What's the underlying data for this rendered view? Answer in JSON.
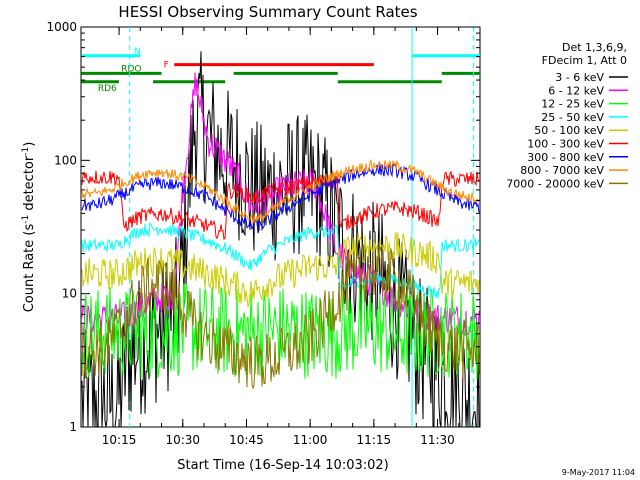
{
  "chart_data": {
    "type": "line",
    "title": "HESSI Observing Summary Count Rates",
    "xlabel": "Start Time (16-Sep-14 10:03:02)",
    "ylabel_main": "Count Rate (s",
    "ylabel_sup1": "-1",
    "ylabel_mid": " detector",
    "ylabel_sup2": "-1",
    "ylabel_end": ")",
    "xlim_min": [
      3.033,
      97.0
    ],
    "ylim": [
      1,
      1000
    ],
    "yscale": "log",
    "x_ticks": [
      {
        "min": 12,
        "label": "10:15"
      },
      {
        "min": 27,
        "label": "10:30"
      },
      {
        "min": 42,
        "label": "10:45"
      },
      {
        "min": 57,
        "label": "11:00"
      },
      {
        "min": 72,
        "label": "11:15"
      },
      {
        "min": 87,
        "label": "11:30"
      }
    ],
    "y_ticks": [
      {
        "v": 1,
        "label": "1"
      },
      {
        "v": 10,
        "label": "10"
      },
      {
        "v": 100,
        "label": "100"
      },
      {
        "v": 1000,
        "label": "1000"
      }
    ],
    "legend_header": [
      "Det 1,3,6,9,",
      "FDecim 1, Att 0"
    ],
    "series": [
      {
        "name": "3 - 6 keV",
        "color": "#000000",
        "x": [
          3.1,
          12,
          14,
          22,
          26,
          28.5,
          30,
          33,
          36,
          40,
          43,
          46,
          50,
          54,
          58,
          61,
          63,
          66,
          70,
          74,
          76,
          79,
          82,
          88,
          92,
          97
        ],
        "y": [
          1.5,
          1.6,
          3.5,
          5.5,
          8,
          60,
          220,
          150,
          110,
          90,
          60,
          55,
          60,
          65,
          62,
          45,
          30,
          22,
          16,
          12,
          9,
          7,
          4,
          2.5,
          1.8,
          1.5
        ]
      },
      {
        "name": "6 - 12 keV",
        "color": "#ff00ff",
        "x": [
          3.1,
          12,
          15,
          20,
          25,
          27,
          30,
          33,
          36,
          40,
          43,
          47,
          50,
          54,
          58,
          61,
          63,
          66,
          70,
          74,
          77,
          80,
          83,
          88,
          92,
          97
        ],
        "y": [
          6.5,
          6.5,
          7,
          9,
          10,
          60,
          400,
          140,
          110,
          75,
          45,
          50,
          60,
          65,
          68,
          35,
          22,
          16,
          13,
          11,
          9,
          8,
          7,
          6.5,
          6.5,
          6.5
        ]
      },
      {
        "name": "12 - 25 keV",
        "color": "#00ff00",
        "x": [
          3.1,
          10,
          20,
          30,
          40,
          50,
          60,
          70,
          80,
          90,
          97
        ],
        "y": [
          5,
          5.2,
          5,
          5.5,
          5,
          5.3,
          5,
          5.5,
          5,
          5.2,
          5
        ]
      },
      {
        "name": "25 - 50 keV",
        "color": "#00ffff",
        "x": [
          3.1,
          12,
          13,
          17,
          22,
          28,
          33,
          38,
          43,
          47,
          52,
          57,
          63.5,
          64,
          68,
          73,
          78,
          83,
          87.5,
          88,
          97
        ],
        "y": [
          23,
          23,
          25,
          30,
          31,
          28,
          25,
          21,
          16,
          21,
          25,
          29,
          29,
          11,
          12.5,
          13,
          12.5,
          11,
          10,
          23,
          23
        ]
      },
      {
        "name": "50 - 100 keV",
        "color": "#cccc00",
        "x": [
          3.1,
          12,
          13,
          17,
          22,
          28,
          33,
          38,
          43,
          47,
          52,
          57,
          63.5,
          64,
          68,
          73,
          78,
          83,
          87.5,
          88,
          97
        ],
        "y": [
          14,
          14,
          15,
          17,
          18,
          16,
          14,
          12,
          10,
          12,
          14,
          16,
          16,
          20,
          22,
          23,
          22,
          20,
          18,
          12,
          12
        ]
      },
      {
        "name": "100 - 300 keV",
        "color": "#ff0000",
        "x": [
          3.1,
          12,
          13,
          17,
          22,
          28,
          33,
          37,
          37.5,
          40,
          44,
          47,
          52,
          57,
          63.5,
          64,
          68,
          73,
          78,
          83,
          87.5,
          88,
          97
        ],
        "y": [
          75,
          75,
          32,
          38,
          40,
          36,
          32,
          28,
          60,
          58,
          52,
          58,
          63,
          68,
          70,
          32,
          37,
          42,
          44,
          40,
          34,
          72,
          72
        ]
      },
      {
        "name": "300 - 800 keV",
        "color": "#0000ff",
        "x": [
          3.1,
          6,
          10,
          14,
          18,
          22,
          28,
          33,
          38,
          42,
          45,
          48,
          52,
          57,
          62,
          67,
          72,
          77,
          82,
          86,
          90,
          94,
          97
        ],
        "y": [
          46,
          46,
          50,
          58,
          66,
          68,
          62,
          52,
          40,
          33,
          32,
          37,
          45,
          55,
          66,
          78,
          85,
          84,
          75,
          62,
          52,
          46,
          45
        ]
      },
      {
        "name": "800 - 7000 keV",
        "color": "#ff8800",
        "x": [
          3.1,
          6,
          10,
          14,
          18,
          22,
          28,
          33,
          38,
          42,
          45,
          48,
          52,
          57,
          62,
          67,
          72,
          77,
          82,
          86,
          90,
          94,
          97
        ],
        "y": [
          56,
          56,
          60,
          70,
          80,
          82,
          74,
          62,
          47,
          38,
          36,
          42,
          52,
          63,
          76,
          86,
          92,
          91,
          82,
          68,
          58,
          53,
          52
        ]
      },
      {
        "name": "7000 - 20000 keV",
        "color": "#8b7500",
        "x": [
          3.1,
          6,
          9,
          12,
          15,
          18,
          21,
          24,
          27,
          30,
          33,
          36,
          39,
          42,
          45,
          48,
          51,
          54,
          57,
          60,
          63,
          66,
          69,
          72,
          75,
          78,
          81,
          84,
          87,
          90,
          93,
          97
        ],
        "y": [
          3.8,
          3.8,
          4.0,
          5.5,
          8,
          11,
          12,
          11,
          8,
          5.5,
          4.5,
          4,
          3.5,
          3.2,
          3.0,
          3.2,
          3.5,
          4.0,
          4.5,
          6,
          9,
          12,
          14,
          15,
          14,
          12,
          9,
          6,
          4.5,
          4.0,
          3.8,
          3.8
        ]
      }
    ],
    "bars": [
      {
        "label": "N",
        "color": "#00ffff",
        "y": 0.928,
        "segments": [
          [
            3.1,
            17
          ],
          [
            81,
            97
          ]
        ]
      },
      {
        "label": "F",
        "color": "#ff0000",
        "y": 0.906,
        "segments": [
          [
            25,
            72
          ]
        ]
      },
      {
        "label": "RDO",
        "color": "#008800",
        "y": 0.884,
        "segments": [
          [
            3.1,
            22
          ],
          [
            39,
            63.5
          ],
          [
            88,
            97
          ]
        ]
      },
      {
        "label": "RD6",
        "color": "#008800",
        "y": 0.863,
        "segments": [
          [
            3.1,
            12
          ],
          [
            20,
            37
          ],
          [
            63.5,
            88
          ]
        ]
      }
    ],
    "vlines": [
      {
        "x": 14.5,
        "color": "#00ffff",
        "style": "dashed"
      },
      {
        "x": 81.0,
        "color": "#00ffff",
        "style": "solid"
      },
      {
        "x": 95.5,
        "color": "#00ffff",
        "style": "dashed"
      }
    ],
    "footer": "9-May-2017 11:04",
    "grid": false
  }
}
